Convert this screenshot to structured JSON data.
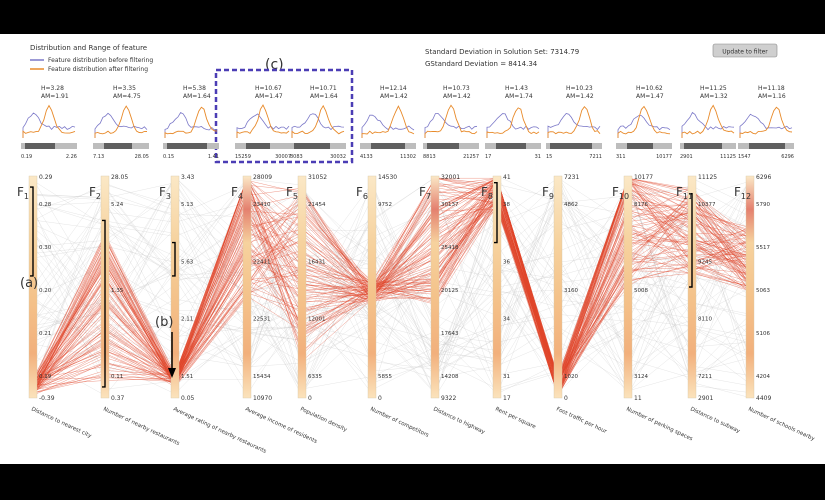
{
  "header": {
    "title": "Distribution and Range of feature",
    "legend": [
      {
        "label": "Feature distribution before filtering",
        "color": "#7b78c8"
      },
      {
        "label": "Feature distribution after filtering",
        "color": "#e88a2a"
      }
    ],
    "std_text": "Standard Deviation in Solution Set: 7314.79",
    "gstd_text": "GStandard Deviation = 8414.34",
    "update_button": "Update to filter",
    "annotation_c": "(c)",
    "annotation_a": "(a)",
    "annotation_b": "(b)"
  },
  "colors": {
    "line_highlight": "#e0452a",
    "line_context": "#bdbdbd",
    "dashed_box": "#4b3db5",
    "kde_before": "#7b78c8",
    "kde_after": "#e88a2a"
  },
  "features": [
    {
      "id": "F1",
      "sub": "1",
      "name": "Distance to nearest city",
      "top": "0.29",
      "bottom": "-0.39",
      "hm": "H=3.28",
      "am": "AM=1.91",
      "lo": "0.19",
      "hi": "2.26",
      "ticks": [
        "0.28",
        "0.30",
        "0.20",
        "0.21",
        "0.19"
      ],
      "rl": "0.19",
      "rr": "2.26"
    },
    {
      "id": "F2",
      "sub": "2",
      "name": "Number of nearby restaurants",
      "top": "28.05",
      "bottom": "0.37",
      "hm": "H=3.35",
      "am": "AM=4.75",
      "lo": "7.13",
      "hi": "28.05",
      "ticks": [
        "5.24",
        "1.35",
        "0.11"
      ],
      "rl": "7.13",
      "rr": "28.05"
    },
    {
      "id": "F3",
      "sub": "3",
      "name": "Average rating of nearby restaurants",
      "top": "3.43",
      "bottom": "0.05",
      "hm": "H=5.38",
      "am": "AM=1.64",
      "lo": "0.15",
      "hi": "1.41",
      "ticks": [
        "5.13",
        "5.63",
        "2.11",
        "1.51"
      ],
      "rl": "0.15",
      "rr": "1.41"
    },
    {
      "id": "F4",
      "sub": "4",
      "name": "Average income of residents",
      "top": "28009",
      "bottom": "10970",
      "hm": "H=10.67",
      "am": "AM=1.47",
      "lo": "15259",
      "hi": "30007",
      "ticks": [
        "23410",
        "22411",
        "22531",
        "15434"
      ],
      "rl": "15259",
      "rr": "30007"
    },
    {
      "id": "F5",
      "sub": "5",
      "name": "Population density",
      "top": "31052",
      "bottom": "0",
      "hm": "H=10.71",
      "am": "AM=1.64",
      "lo": "8083",
      "hi": "30032",
      "ticks": [
        "21454",
        "16431",
        "12001",
        "6335"
      ],
      "rl": "8083",
      "rr": "30032"
    },
    {
      "id": "F6",
      "sub": "6",
      "name": "Number of competitors",
      "top": "14530",
      "bottom": "0",
      "hm": "H=12.14",
      "am": "AM=1.42",
      "lo": "4133",
      "hi": "11302",
      "ticks": [
        "9752",
        "5855"
      ],
      "rl": "4133",
      "rr": "11302"
    },
    {
      "id": "F7",
      "sub": "7",
      "name": "Distance to highway",
      "top": "32001",
      "bottom": "9322",
      "hm": "H=10.73",
      "am": "AM=1.42",
      "lo": "8813",
      "hi": "21257",
      "ticks": [
        "30137",
        "25418",
        "20125",
        "17643",
        "14208"
      ],
      "rl": "8813",
      "rr": "21257"
    },
    {
      "id": "F8",
      "sub": "8",
      "name": "Rent per square",
      "top": "41",
      "bottom": "17",
      "hm": "H=1.43",
      "am": "AM=1.74",
      "lo": "17",
      "hi": "31",
      "ticks": [
        "38",
        "36",
        "34",
        "31"
      ],
      "rl": "17",
      "rr": "31"
    },
    {
      "id": "F9",
      "sub": "9",
      "name": "Foot traffic per hour",
      "top": "7231",
      "bottom": "0",
      "hm": "H=10.23",
      "am": "AM=1.42",
      "lo": "15",
      "hi": "7211",
      "ticks": [
        "4862",
        "3160",
        "1020"
      ],
      "rl": "15",
      "rr": "7211"
    },
    {
      "id": "F10",
      "sub": "10",
      "name": "Number of parking spaces",
      "top": "10177",
      "bottom": "11",
      "hm": "H=10.62",
      "am": "AM=1.47",
      "lo": "311",
      "hi": "10177",
      "ticks": [
        "8176",
        "5008",
        "3124"
      ],
      "rl": "311",
      "rr": "10177"
    },
    {
      "id": "F11",
      "sub": "11",
      "name": "Distance to subway",
      "top": "11125",
      "bottom": "2901",
      "hm": "H=11.25",
      "am": "AM=1.32",
      "lo": "2901",
      "hi": "11125",
      "ticks": [
        "10377",
        "9245",
        "8110",
        "7211"
      ],
      "rl": "2901",
      "rr": "11125"
    },
    {
      "id": "F12",
      "sub": "12",
      "name": "Number of schools nearby",
      "top": "6296",
      "bottom": "4409",
      "hm": "H=11.18",
      "am": "AM=1.16",
      "lo": "1547",
      "hi": "6296",
      "ticks": [
        "5790",
        "5517",
        "5063",
        "5106",
        "4204"
      ],
      "rl": "1547",
      "rr": "6296"
    }
  ]
}
